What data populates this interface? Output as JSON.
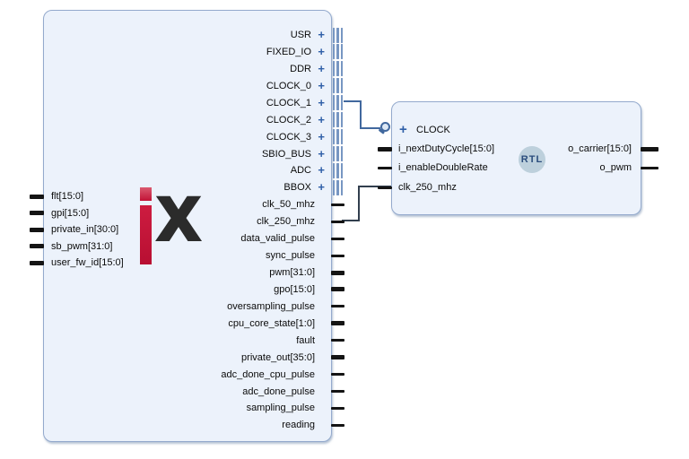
{
  "diagram": {
    "main_block": {
      "logo_x": "x",
      "left_ports": [
        {
          "label": "flt[15:0]",
          "kind": "bus"
        },
        {
          "label": "gpi[15:0]",
          "kind": "bus"
        },
        {
          "label": "private_in[30:0]",
          "kind": "bus"
        },
        {
          "label": "sb_pwm[31:0]",
          "kind": "bus"
        },
        {
          "label": "user_fw_id[15:0]",
          "kind": "bus"
        }
      ],
      "right_ports": [
        {
          "label": "USR",
          "kind": "interface"
        },
        {
          "label": "FIXED_IO",
          "kind": "interface"
        },
        {
          "label": "DDR",
          "kind": "interface"
        },
        {
          "label": "CLOCK_0",
          "kind": "interface"
        },
        {
          "label": "CLOCK_1",
          "kind": "interface"
        },
        {
          "label": "CLOCK_2",
          "kind": "interface"
        },
        {
          "label": "CLOCK_3",
          "kind": "interface"
        },
        {
          "label": "SBIO_BUS",
          "kind": "interface"
        },
        {
          "label": "ADC",
          "kind": "interface"
        },
        {
          "label": "BBOX",
          "kind": "interface"
        },
        {
          "label": "clk_50_mhz",
          "kind": "scalar"
        },
        {
          "label": "clk_250_mhz",
          "kind": "scalar"
        },
        {
          "label": "data_valid_pulse",
          "kind": "scalar"
        },
        {
          "label": "sync_pulse",
          "kind": "scalar"
        },
        {
          "label": "pwm[31:0]",
          "kind": "bus"
        },
        {
          "label": "gpo[15:0]",
          "kind": "bus"
        },
        {
          "label": "oversampling_pulse",
          "kind": "scalar"
        },
        {
          "label": "cpu_core_state[1:0]",
          "kind": "bus"
        },
        {
          "label": "fault",
          "kind": "scalar"
        },
        {
          "label": "private_out[35:0]",
          "kind": "bus"
        },
        {
          "label": "adc_done_cpu_pulse",
          "kind": "scalar"
        },
        {
          "label": "adc_done_pulse",
          "kind": "scalar"
        },
        {
          "label": "sampling_pulse",
          "kind": "scalar"
        },
        {
          "label": "reading",
          "kind": "scalar"
        }
      ]
    },
    "rtl_block": {
      "badge": "RTL",
      "left_ports": [
        {
          "label": "CLOCK",
          "kind": "interface"
        },
        {
          "label": "i_nextDutyCycle[15:0]",
          "kind": "bus"
        },
        {
          "label": "i_enableDoubleRate",
          "kind": "scalar"
        },
        {
          "label": "clk_250_mhz",
          "kind": "scalar"
        }
      ],
      "right_ports": [
        {
          "label": "o_carrier[15:0]",
          "kind": "bus"
        },
        {
          "label": "o_pwm",
          "kind": "scalar"
        }
      ]
    },
    "nets": [
      {
        "from": "main.CLOCK_1",
        "to": "rtl.CLOCK",
        "type": "interface"
      },
      {
        "from": "main.clk_250_mhz",
        "to": "rtl.clk_250_mhz",
        "type": "signal"
      }
    ],
    "icons": {
      "plus_glyph": "+",
      "magnifier": "magnifier"
    },
    "colors": {
      "block_fill": "#ecf2fb",
      "block_border": "#94aacd",
      "interface_pin": "#7796c2",
      "plus": "#2f5fa8",
      "pin_stub": "#141414",
      "net_interface": "#41689e",
      "net_signal": "#323f4e",
      "logo_red": "#c21336",
      "logo_dark": "#2b2b2b",
      "badge_fill": "#bdd0dc",
      "badge_text": "#2b4d7d"
    }
  }
}
